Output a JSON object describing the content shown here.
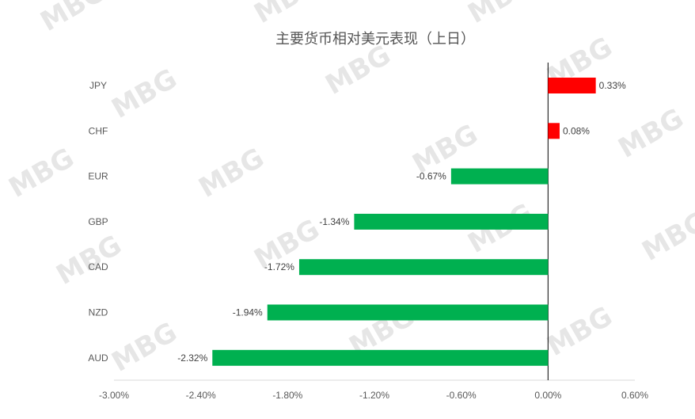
{
  "watermark": "MBG",
  "chart_data": {
    "type": "bar",
    "orientation": "horizontal",
    "title": "主要货币相对美元表现（上日）",
    "categories": [
      "JPY",
      "CHF",
      "EUR",
      "GBP",
      "CAD",
      "NZD",
      "AUD"
    ],
    "values": [
      0.33,
      0.08,
      -0.67,
      -1.34,
      -1.72,
      -1.94,
      -2.32
    ],
    "data_labels": [
      "0.33%",
      "0.08%",
      "-0.67%",
      "-1.34%",
      "-1.72%",
      "-1.94%",
      "-2.32%"
    ],
    "xlim": [
      -3.0,
      0.6
    ],
    "xticks": [
      -3.0,
      -2.4,
      -1.8,
      -1.2,
      -0.6,
      0.0,
      0.6
    ],
    "xtick_labels": [
      "-3.00%",
      "-2.40%",
      "-1.80%",
      "-1.20%",
      "-0.60%",
      "0.00%",
      "0.60%"
    ],
    "grid": false,
    "legend": "none",
    "colors": {
      "positive": "#ff0000",
      "negative": "#00b050",
      "axis": "#000000"
    }
  }
}
